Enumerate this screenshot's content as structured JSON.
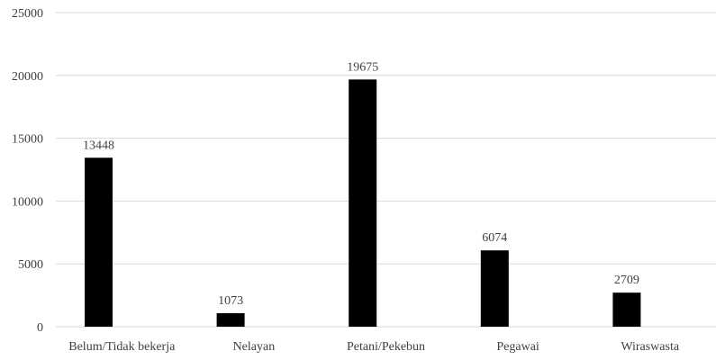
{
  "chart_data": {
    "type": "bar",
    "title": "",
    "xlabel": "",
    "ylabel": "",
    "categories": [
      "Belum/Tidak bekerja",
      "Nelayan",
      "Petani/Pekebun",
      "Pegawai",
      "Wiraswasta"
    ],
    "values": [
      13448,
      1073,
      19675,
      6074,
      2709
    ],
    "ylim": [
      0,
      25000
    ],
    "yticks": [
      "0",
      "5000",
      "10000",
      "15000",
      "20000",
      "25000"
    ],
    "data_labels": [
      "13448",
      "1073",
      "19675",
      "6074",
      "2709"
    ],
    "grid": true,
    "legend": "none",
    "colors": {
      "bar": "#000000",
      "grid": "#d9d9d9",
      "text": "#404040"
    }
  }
}
